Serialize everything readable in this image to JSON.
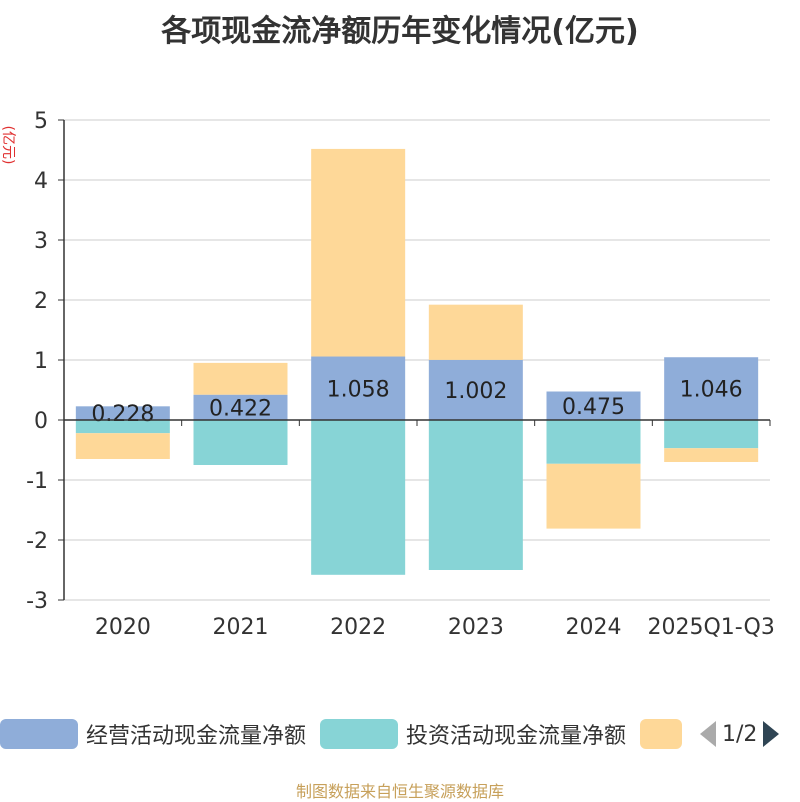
{
  "chart_data": {
    "type": "bar",
    "stacked": true,
    "title": "各项现金流净额历年变化情况(亿元)",
    "ylabel": "(亿元)",
    "categories": [
      "2020",
      "2021",
      "2022",
      "2023",
      "2024",
      "2025Q1-Q3"
    ],
    "ylim": [
      -3,
      5
    ],
    "yticks": [
      5,
      4,
      3,
      2,
      1,
      0,
      -1,
      -2,
      -3
    ],
    "series": [
      {
        "name": "经营活动现金流量净额",
        "color": "#8fadd9",
        "values": [
          0.228,
          0.422,
          1.058,
          1.002,
          0.475,
          1.046
        ],
        "labels": [
          "0.228",
          "0.422",
          "1.058",
          "1.002",
          "0.475",
          "1.046"
        ]
      },
      {
        "name": "投资活动现金流量净额",
        "color": "#87d4d6",
        "values": [
          -0.22,
          -0.75,
          -2.58,
          -2.5,
          -0.73,
          -0.47
        ]
      },
      {
        "name": "",
        "color": "#fed898",
        "values": [
          -0.43,
          0.53,
          3.46,
          0.92,
          -1.08,
          -0.23
        ]
      }
    ],
    "legend": {
      "page": "1/2"
    }
  },
  "footer": "制图数据来自恒生聚源数据库"
}
